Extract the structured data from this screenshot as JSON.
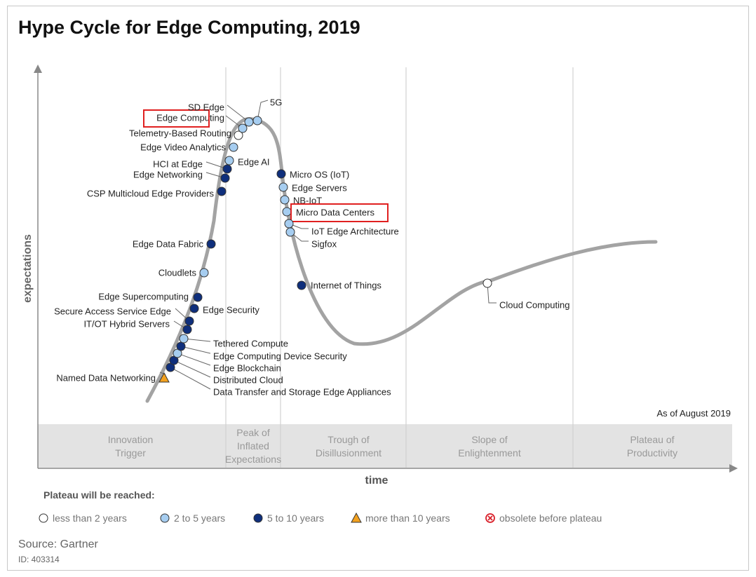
{
  "title": "Hype Cycle for Edge Computing, 2019",
  "chart_data": {
    "type": "scatter",
    "title": "Hype Cycle for Edge Computing, 2019",
    "ylabel": "expectations",
    "xlabel": "time",
    "as_of": "As of August 2019",
    "phases": [
      {
        "lines": [
          "Innovation",
          "Trigger"
        ]
      },
      {
        "lines": [
          "Peak of",
          "Inflated",
          "Expectations"
        ]
      },
      {
        "lines": [
          "Trough of",
          "Disillusionment"
        ]
      },
      {
        "lines": [
          "Slope of",
          "Enlightenment"
        ]
      },
      {
        "lines": [
          "Plateau of",
          "Productivity"
        ]
      }
    ],
    "legend_title": "Plateau will be reached:",
    "legend": [
      {
        "key": "lt2",
        "label": "less than 2 years",
        "color": "#ffffff"
      },
      {
        "key": "2to5",
        "label": "2 to 5 years",
        "color": "#a6cdf0"
      },
      {
        "key": "5to10",
        "label": "5 to 10 years",
        "color": "#0f2f7c"
      },
      {
        "key": "gt10",
        "label": "more than 10 years",
        "color": "#f3a11e"
      },
      {
        "key": "obsolete",
        "label": "obsolete before plateau",
        "color": "#d9202a"
      }
    ],
    "highlight_color": "#e02020",
    "technologies": [
      {
        "name": "Named Data Networking",
        "category": "gt10",
        "phase": "Innovation Trigger"
      },
      {
        "name": "Data Transfer and Storage Edge Appliances",
        "category": "5to10",
        "phase": "Innovation Trigger"
      },
      {
        "name": "Distributed Cloud",
        "category": "5to10",
        "phase": "Innovation Trigger"
      },
      {
        "name": "Edge Blockchain",
        "category": "2to5",
        "phase": "Innovation Trigger"
      },
      {
        "name": "Edge Computing Device Security",
        "category": "5to10",
        "phase": "Innovation Trigger"
      },
      {
        "name": "Tethered Compute",
        "category": "2to5",
        "phase": "Innovation Trigger"
      },
      {
        "name": "IT/OT Hybrid Servers",
        "category": "5to10",
        "phase": "Innovation Trigger"
      },
      {
        "name": "Secure Access Service Edge",
        "category": "5to10",
        "phase": "Innovation Trigger"
      },
      {
        "name": "Edge Security",
        "category": "5to10",
        "phase": "Innovation Trigger"
      },
      {
        "name": "Edge Supercomputing",
        "category": "5to10",
        "phase": "Innovation Trigger"
      },
      {
        "name": "Cloudlets",
        "category": "2to5",
        "phase": "Innovation Trigger"
      },
      {
        "name": "Edge Data Fabric",
        "category": "5to10",
        "phase": "Innovation Trigger"
      },
      {
        "name": "CSP Multicloud Edge Providers",
        "category": "5to10",
        "phase": "Innovation Trigger"
      },
      {
        "name": "Edge Networking",
        "category": "5to10",
        "phase": "Innovation Trigger"
      },
      {
        "name": "HCI at Edge",
        "category": "5to10",
        "phase": "Innovation Trigger"
      },
      {
        "name": "Edge AI",
        "category": "2to5",
        "phase": "Innovation Trigger"
      },
      {
        "name": "Edge Video Analytics",
        "category": "2to5",
        "phase": "Innovation Trigger"
      },
      {
        "name": "Telemetry-Based Routing",
        "category": "lt2",
        "phase": "Peak of Inflated Expectations"
      },
      {
        "name": "Edge Computing",
        "category": "2to5",
        "phase": "Peak of Inflated Expectations",
        "highlight": true
      },
      {
        "name": "SD Edge",
        "category": "2to5",
        "phase": "Peak of Inflated Expectations"
      },
      {
        "name": "5G",
        "category": "2to5",
        "phase": "Peak of Inflated Expectations"
      },
      {
        "name": "Micro OS (IoT)",
        "category": "5to10",
        "phase": "Trough of Disillusionment"
      },
      {
        "name": "Edge Servers",
        "category": "2to5",
        "phase": "Trough of Disillusionment"
      },
      {
        "name": "NB-IoT",
        "category": "2to5",
        "phase": "Trough of Disillusionment"
      },
      {
        "name": "Micro Data Centers",
        "category": "2to5",
        "phase": "Trough of Disillusionment",
        "highlight": true
      },
      {
        "name": "IoT Edge Architecture",
        "category": "2to5",
        "phase": "Trough of Disillusionment"
      },
      {
        "name": "Sigfox",
        "category": "2to5",
        "phase": "Trough of Disillusionment"
      },
      {
        "name": "Internet of Things",
        "category": "5to10",
        "phase": "Trough of Disillusionment"
      },
      {
        "name": "Cloud Computing",
        "category": "lt2",
        "phase": "Slope of Enlightenment"
      }
    ]
  },
  "source": "Source: Gartner",
  "doc_id": "ID: 403314"
}
